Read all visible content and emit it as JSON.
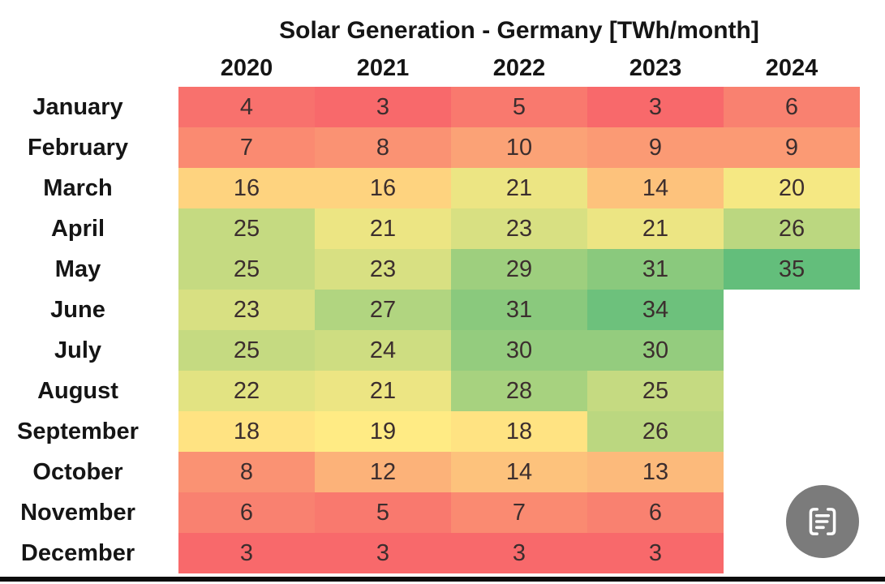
{
  "title": "Solar Generation - Germany [TWh/month]",
  "chart_data": {
    "type": "heatmap",
    "title": "Solar Generation - Germany [TWh/month]",
    "unit": "TWh/month",
    "columns": [
      "2020",
      "2021",
      "2022",
      "2023",
      "2024"
    ],
    "rows": [
      "January",
      "February",
      "March",
      "April",
      "May",
      "June",
      "July",
      "August",
      "September",
      "October",
      "November",
      "December"
    ],
    "values": [
      [
        4,
        3,
        5,
        3,
        6
      ],
      [
        7,
        8,
        10,
        9,
        9
      ],
      [
        16,
        16,
        21,
        14,
        20
      ],
      [
        25,
        21,
        23,
        21,
        26
      ],
      [
        25,
        23,
        29,
        31,
        35
      ],
      [
        23,
        27,
        31,
        34,
        null
      ],
      [
        25,
        24,
        30,
        30,
        null
      ],
      [
        22,
        21,
        28,
        25,
        null
      ],
      [
        18,
        19,
        18,
        26,
        null
      ],
      [
        8,
        12,
        14,
        13,
        null
      ],
      [
        6,
        5,
        7,
        6,
        null
      ],
      [
        3,
        3,
        3,
        3,
        null
      ]
    ],
    "color_scale": {
      "min_value": 3,
      "min_color": "#F8696B",
      "mid_value": 19,
      "mid_color": "#FFEB84",
      "max_value": 35,
      "max_color": "#63BE7B"
    },
    "legend_position": "none",
    "grid": false,
    "cell_text_color": "#3c2e2e",
    "label_color": "#151515"
  },
  "ui": {
    "scan_button": {
      "icon": "scan-text-icon",
      "background": "#7b7b7b",
      "icon_color": "#ffffff"
    },
    "bottom_bar_color": "#0c0c0c",
    "background": "#ffffff"
  }
}
